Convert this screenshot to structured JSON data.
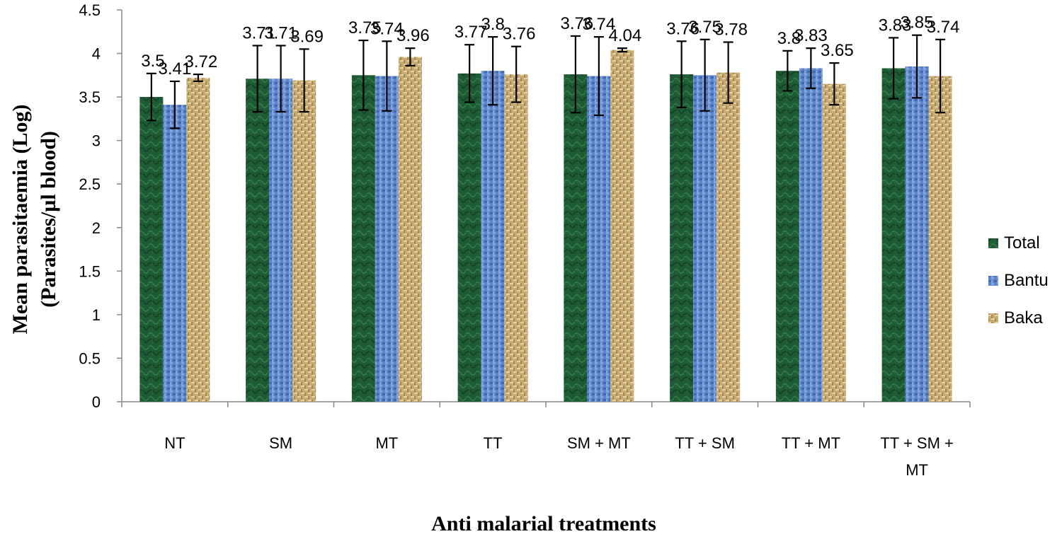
{
  "chart_data": {
    "type": "bar",
    "title": "",
    "xlabel": "Anti malarial treatments",
    "ylabel_lines": [
      "Mean parasitaemia (Log)",
      "(Parasites/µl blood)"
    ],
    "ylim": [
      0,
      4.5
    ],
    "yticks": [
      "0",
      "0.5",
      "1",
      "1.5",
      "2",
      "2.5",
      "3",
      "3.5",
      "4",
      "4.5"
    ],
    "categories": [
      [
        "NT"
      ],
      [
        "SM"
      ],
      [
        "MT"
      ],
      [
        "TT"
      ],
      [
        "SM + MT"
      ],
      [
        "TT + SM"
      ],
      [
        "TT + MT"
      ],
      [
        "TT + SM +",
        "MT"
      ]
    ],
    "legend_position": "right",
    "series": [
      {
        "name": "Total",
        "color": "#1e5a34",
        "values": [
          3.5,
          3.71,
          3.75,
          3.77,
          3.76,
          3.76,
          3.8,
          3.83
        ],
        "error": [
          0.27,
          0.38,
          0.4,
          0.33,
          0.44,
          0.38,
          0.23,
          0.35
        ],
        "labels": [
          "3.5",
          "3.71",
          "3.75",
          "3.77",
          "3.76",
          "3.76",
          "3.8",
          "3.83"
        ]
      },
      {
        "name": "Bantu",
        "color": "#5b84c9",
        "values": [
          3.41,
          3.71,
          3.74,
          3.8,
          3.74,
          3.75,
          3.83,
          3.85
        ],
        "error": [
          0.27,
          0.38,
          0.4,
          0.39,
          0.45,
          0.41,
          0.23,
          0.36
        ],
        "labels": [
          "3.41",
          "3.71",
          "3.74",
          "3.8",
          "3.74",
          "3.75",
          "3.83",
          "3.85"
        ]
      },
      {
        "name": "Baka",
        "color": "#c8ab72",
        "values": [
          3.72,
          3.69,
          3.96,
          3.76,
          4.04,
          3.78,
          3.65,
          3.74
        ],
        "error": [
          0.04,
          0.36,
          0.1,
          0.32,
          0.02,
          0.35,
          0.24,
          0.42
        ],
        "labels": [
          "3.72",
          "3.69",
          "3.96",
          "3.76",
          "4.04",
          "3.78",
          "3.65",
          "3.74"
        ]
      }
    ]
  }
}
